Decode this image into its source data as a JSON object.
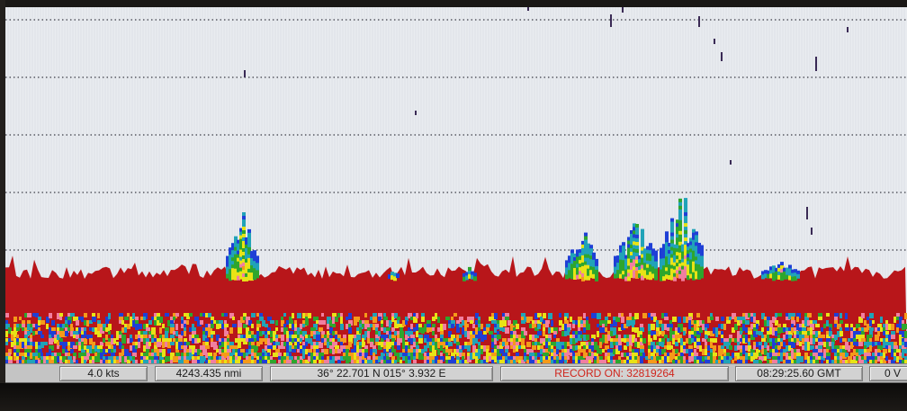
{
  "status": {
    "speed": "4.0 kts",
    "distance": "4243.435 nmi",
    "position": "36° 22.701 N  015° 3.932 E",
    "record": "RECORD ON: 32819264",
    "time": "08:29:25.60 GMT",
    "partial": "0 V"
  },
  "colors": {
    "background": "#e9ecf0",
    "seabed": "#b8161a",
    "record_text": "#d0261d",
    "echo_palette": [
      "#1f3fd6",
      "#21a3b8",
      "#2ea62d",
      "#e8e316",
      "#f59a1a",
      "#f07fa0",
      "#c01616"
    ]
  }
}
